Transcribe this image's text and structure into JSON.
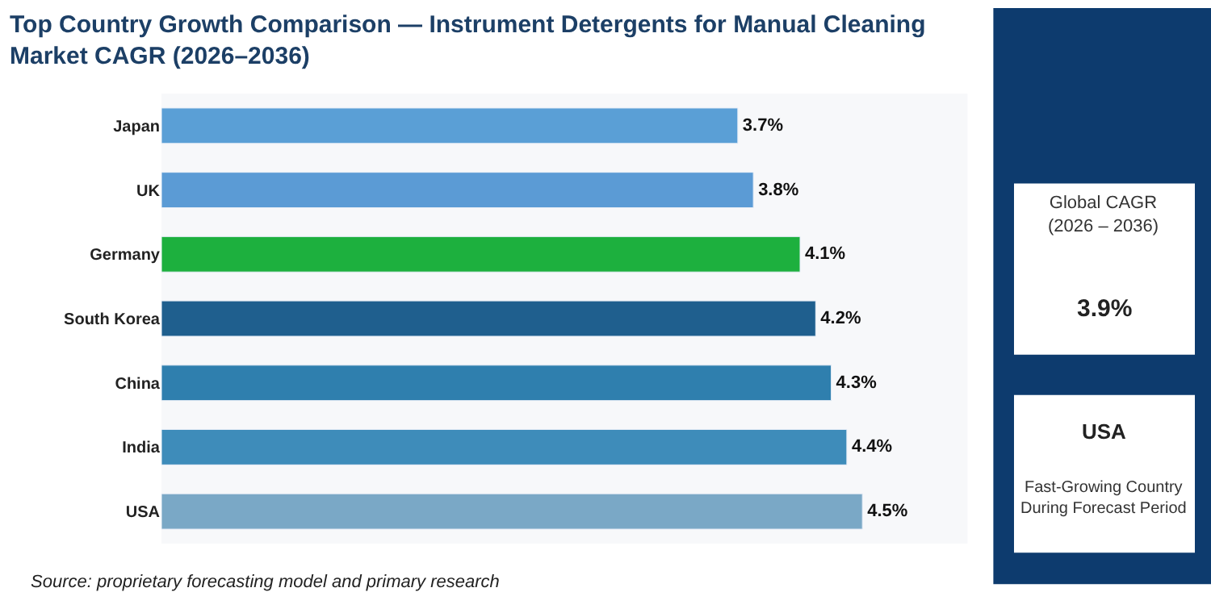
{
  "chart_data": {
    "type": "bar",
    "orientation": "horizontal",
    "title": "Top Country Growth Comparison — Instrument Detergents for Manual Cleaning\nMarket CAGR (2026–2036)",
    "categories": [
      "Japan",
      "UK",
      "Germany",
      "South Korea",
      "China",
      "India",
      "USA"
    ],
    "values": [
      3.7,
      3.8,
      4.1,
      4.2,
      4.3,
      4.4,
      4.5
    ],
    "value_labels": [
      "3.7%",
      "3.8%",
      "4.1%",
      "4.2%",
      "4.3%",
      "4.4%",
      "4.5%"
    ],
    "colors": [
      "#5a9fd6",
      "#5b9bd5",
      "#1db03e",
      "#1f5f8e",
      "#2f7fae",
      "#3e8cba",
      "#7aa8c6"
    ],
    "annotations": [
      "Source: proprietary forecasting model and primary research",
      "Global CAGR\n(2026 – 2036)",
      "3.9%",
      "USA",
      "Fast-Growing Country\nDuring Forecast Period"
    ],
    "legend": false
  }
}
